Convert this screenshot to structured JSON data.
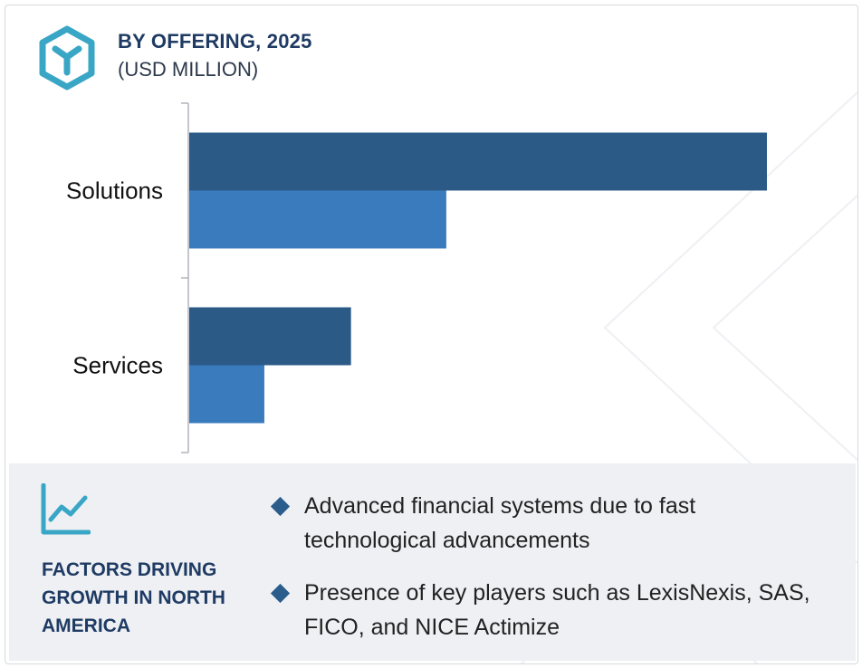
{
  "header": {
    "title": "BY OFFERING, 2025",
    "subtitle": "(USD MILLION)",
    "icon": "cube-logo-icon"
  },
  "colors": {
    "series_dark": "#2b5a87",
    "series_light": "#3a7bbd",
    "accent": "#3aa6c6",
    "title": "#1f3b63"
  },
  "chart_data": {
    "type": "bar",
    "orientation": "horizontal",
    "categories": [
      "Solutions",
      "Services"
    ],
    "series": [
      {
        "values": [
          100,
          28
        ]
      },
      {
        "values": [
          44.5,
          13
        ]
      }
    ],
    "xlim": [
      0,
      100
    ],
    "grid": false,
    "legend": "none",
    "note": "values are relative bar lengths; no numeric axis is printed"
  },
  "factors": {
    "icon": "trend-line-icon",
    "title": "FACTORS DRIVING GROWTH IN NORTH AMERICA",
    "items": [
      "Advanced financial systems due to fast technological advancements",
      "Presence of key players such as LexisNexis, SAS, FICO, and NICE Actimize"
    ]
  }
}
